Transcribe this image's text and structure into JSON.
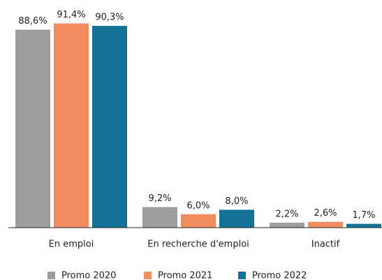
{
  "chart_data": {
    "type": "bar",
    "categories": [
      "En emploi",
      "En recherche d'emploi",
      "Inactif"
    ],
    "series": [
      {
        "name": "Promo 2020",
        "color": "#9d9d9c",
        "values": [
          88.6,
          9.2,
          2.2
        ],
        "value_labels": [
          "88,6%",
          "9,2%",
          "2,2%"
        ]
      },
      {
        "name": "Promo 2021",
        "color": "#f28c5e",
        "values": [
          91.4,
          6.0,
          2.6
        ],
        "value_labels": [
          "91,4%",
          "6,0%",
          "2,6%"
        ]
      },
      {
        "name": "Promo 2022",
        "color": "#137196",
        "values": [
          90.3,
          8.0,
          1.7
        ],
        "value_labels": [
          "90,3%",
          "8,0%",
          "1,7%"
        ]
      }
    ],
    "legend": "bottom"
  }
}
